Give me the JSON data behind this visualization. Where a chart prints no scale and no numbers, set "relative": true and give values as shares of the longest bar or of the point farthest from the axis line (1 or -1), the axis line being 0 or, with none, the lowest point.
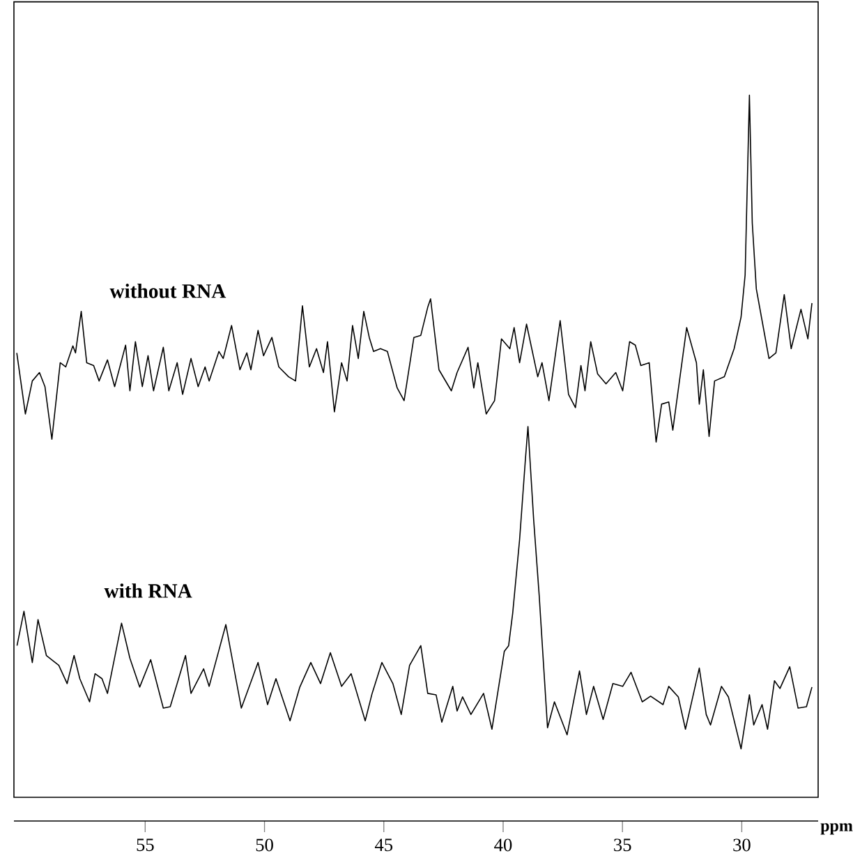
{
  "chart_data": {
    "type": "line",
    "relative": true,
    "xlabel": "ppm",
    "xlim": [
      60.5,
      26.8
    ],
    "xticks": [
      55,
      50,
      45,
      40,
      35,
      30
    ],
    "series": [
      {
        "name": "without RNA",
        "color": "#000000",
        "x": [
          60.38,
          60.02,
          59.73,
          59.43,
          59.2,
          58.91,
          58.56,
          58.33,
          58.03,
          57.92,
          57.68,
          57.45,
          57.16,
          56.93,
          56.58,
          56.28,
          55.82,
          55.64,
          55.41,
          55.12,
          54.88,
          54.65,
          54.24,
          54.01,
          53.66,
          53.43,
          53.08,
          52.78,
          52.49,
          52.32,
          51.91,
          51.73,
          51.38,
          51.03,
          50.74,
          50.57,
          50.27,
          50.04,
          49.69,
          49.4,
          48.99,
          48.7,
          48.41,
          48.12,
          47.82,
          47.53,
          47.36,
          47.07,
          46.77,
          46.54,
          46.31,
          46.07,
          45.84,
          45.61,
          45.43,
          45.14,
          44.85,
          44.44,
          44.15,
          43.74,
          43.45,
          43.16,
          43.04,
          42.69,
          42.17,
          41.93,
          41.47,
          41.23,
          41.06,
          40.71,
          40.36,
          40.07,
          39.72,
          39.54,
          39.31,
          39.02,
          38.55,
          38.37,
          38.08,
          37.61,
          37.26,
          36.97,
          36.74,
          36.57,
          36.33,
          36.04,
          35.69,
          35.28,
          34.99,
          34.7,
          34.46,
          34.23,
          33.88,
          33.59,
          33.36,
          33.06,
          32.89,
          32.31,
          31.9,
          31.78,
          31.61,
          31.37,
          31.14,
          30.73,
          30.32,
          30.03,
          29.86,
          29.68,
          29.56,
          29.39,
          29.15,
          28.86,
          28.57,
          28.22,
          27.93,
          27.52,
          27.23,
          27.06
        ],
        "values": [
          0.633,
          0.546,
          0.593,
          0.605,
          0.585,
          0.51,
          0.619,
          0.613,
          0.643,
          0.633,
          0.692,
          0.619,
          0.615,
          0.593,
          0.623,
          0.585,
          0.644,
          0.579,
          0.649,
          0.585,
          0.629,
          0.579,
          0.641,
          0.579,
          0.619,
          0.574,
          0.625,
          0.585,
          0.613,
          0.593,
          0.635,
          0.625,
          0.672,
          0.609,
          0.633,
          0.609,
          0.665,
          0.629,
          0.655,
          0.613,
          0.599,
          0.593,
          0.7,
          0.613,
          0.639,
          0.605,
          0.649,
          0.549,
          0.619,
          0.593,
          0.672,
          0.625,
          0.692,
          0.655,
          0.635,
          0.639,
          0.635,
          0.583,
          0.565,
          0.655,
          0.658,
          0.698,
          0.71,
          0.609,
          0.579,
          0.605,
          0.641,
          0.583,
          0.619,
          0.546,
          0.565,
          0.653,
          0.639,
          0.669,
          0.619,
          0.674,
          0.599,
          0.619,
          0.565,
          0.679,
          0.574,
          0.555,
          0.615,
          0.579,
          0.649,
          0.603,
          0.589,
          0.605,
          0.579,
          0.649,
          0.644,
          0.615,
          0.619,
          0.506,
          0.56,
          0.563,
          0.523,
          0.669,
          0.619,
          0.56,
          0.609,
          0.514,
          0.593,
          0.599,
          0.639,
          0.684,
          0.744,
          1.0,
          0.818,
          0.724,
          0.679,
          0.625,
          0.633,
          0.716,
          0.639,
          0.695,
          0.653,
          0.704
        ]
      },
      {
        "name": "with RNA",
        "color": "#000000",
        "x": [
          60.37,
          60.08,
          59.73,
          59.49,
          59.14,
          58.62,
          58.27,
          57.98,
          57.74,
          57.33,
          57.1,
          56.81,
          56.58,
          55.99,
          55.64,
          55.23,
          54.77,
          54.24,
          53.95,
          53.31,
          53.08,
          52.55,
          52.32,
          51.62,
          50.97,
          50.27,
          49.87,
          49.52,
          48.93,
          48.52,
          48.06,
          47.65,
          47.24,
          46.77,
          46.37,
          45.78,
          45.49,
          45.08,
          44.62,
          44.27,
          43.92,
          43.45,
          43.16,
          42.81,
          42.57,
          42.11,
          41.93,
          41.7,
          41.35,
          40.82,
          40.47,
          39.95,
          39.77,
          39.6,
          39.31,
          39.07,
          38.96,
          38.72,
          38.49,
          38.14,
          37.85,
          37.32,
          36.8,
          36.51,
          36.21,
          35.81,
          35.4,
          34.99,
          34.64,
          34.17,
          33.82,
          33.3,
          33.06,
          32.66,
          32.36,
          31.78,
          31.49,
          31.31,
          30.85,
          30.56,
          30.03,
          29.68,
          29.5,
          29.15,
          28.92,
          28.63,
          28.4,
          27.99,
          27.64,
          27.29,
          27.06
        ],
        "values": [
          0.216,
          0.265,
          0.192,
          0.253,
          0.202,
          0.188,
          0.162,
          0.202,
          0.169,
          0.136,
          0.176,
          0.169,
          0.148,
          0.248,
          0.198,
          0.157,
          0.196,
          0.127,
          0.129,
          0.202,
          0.148,
          0.183,
          0.158,
          0.246,
          0.127,
          0.192,
          0.132,
          0.169,
          0.109,
          0.157,
          0.192,
          0.162,
          0.206,
          0.158,
          0.176,
          0.109,
          0.148,
          0.192,
          0.162,
          0.118,
          0.188,
          0.216,
          0.148,
          0.146,
          0.107,
          0.158,
          0.123,
          0.143,
          0.118,
          0.148,
          0.097,
          0.208,
          0.216,
          0.262,
          0.367,
          0.48,
          0.528,
          0.395,
          0.288,
          0.099,
          0.136,
          0.089,
          0.18,
          0.118,
          0.158,
          0.111,
          0.162,
          0.158,
          0.178,
          0.136,
          0.144,
          0.132,
          0.158,
          0.143,
          0.097,
          0.184,
          0.118,
          0.103,
          0.158,
          0.143,
          0.069,
          0.146,
          0.103,
          0.132,
          0.097,
          0.166,
          0.155,
          0.186,
          0.127,
          0.129,
          0.157
        ]
      }
    ]
  }
}
